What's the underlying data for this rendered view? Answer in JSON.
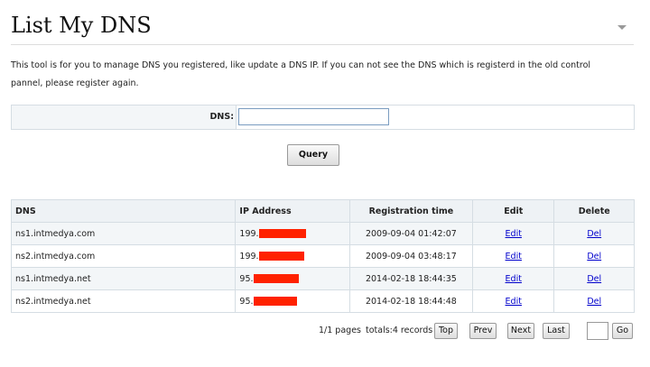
{
  "header": {
    "title": "List My DNS"
  },
  "description": "This tool is for you to manage DNS you registered, like update a DNS IP. If you can not see the DNS which is registerd in the old control pannel, please register again.",
  "form": {
    "label": "DNS:",
    "button": "Query"
  },
  "table": {
    "columns": [
      "DNS",
      "IP Address",
      "Registration time",
      "Edit",
      "Delete"
    ],
    "rows": [
      [
        "ns1.intmedya.com",
        "199.",
        "2009-09-04 01:42:07",
        "Edit",
        "Del"
      ],
      [
        "ns2.intmedya.com",
        "199.",
        "2009-09-04 03:48:17",
        "Edit",
        "Del"
      ],
      [
        "ns1.intmedya.net",
        "95.",
        "2014-02-18 18:44:35",
        "Edit",
        "Del"
      ],
      [
        "ns2.intmedya.net",
        "95.",
        "2014-02-18 18:44:48",
        "Edit",
        "Del"
      ]
    ]
  },
  "pagination": {
    "pages": "1/1 pages",
    "totals": "totals:4 records",
    "buttons": [
      "Top",
      "Prev",
      "Next",
      "Last"
    ],
    "go": "Go"
  }
}
